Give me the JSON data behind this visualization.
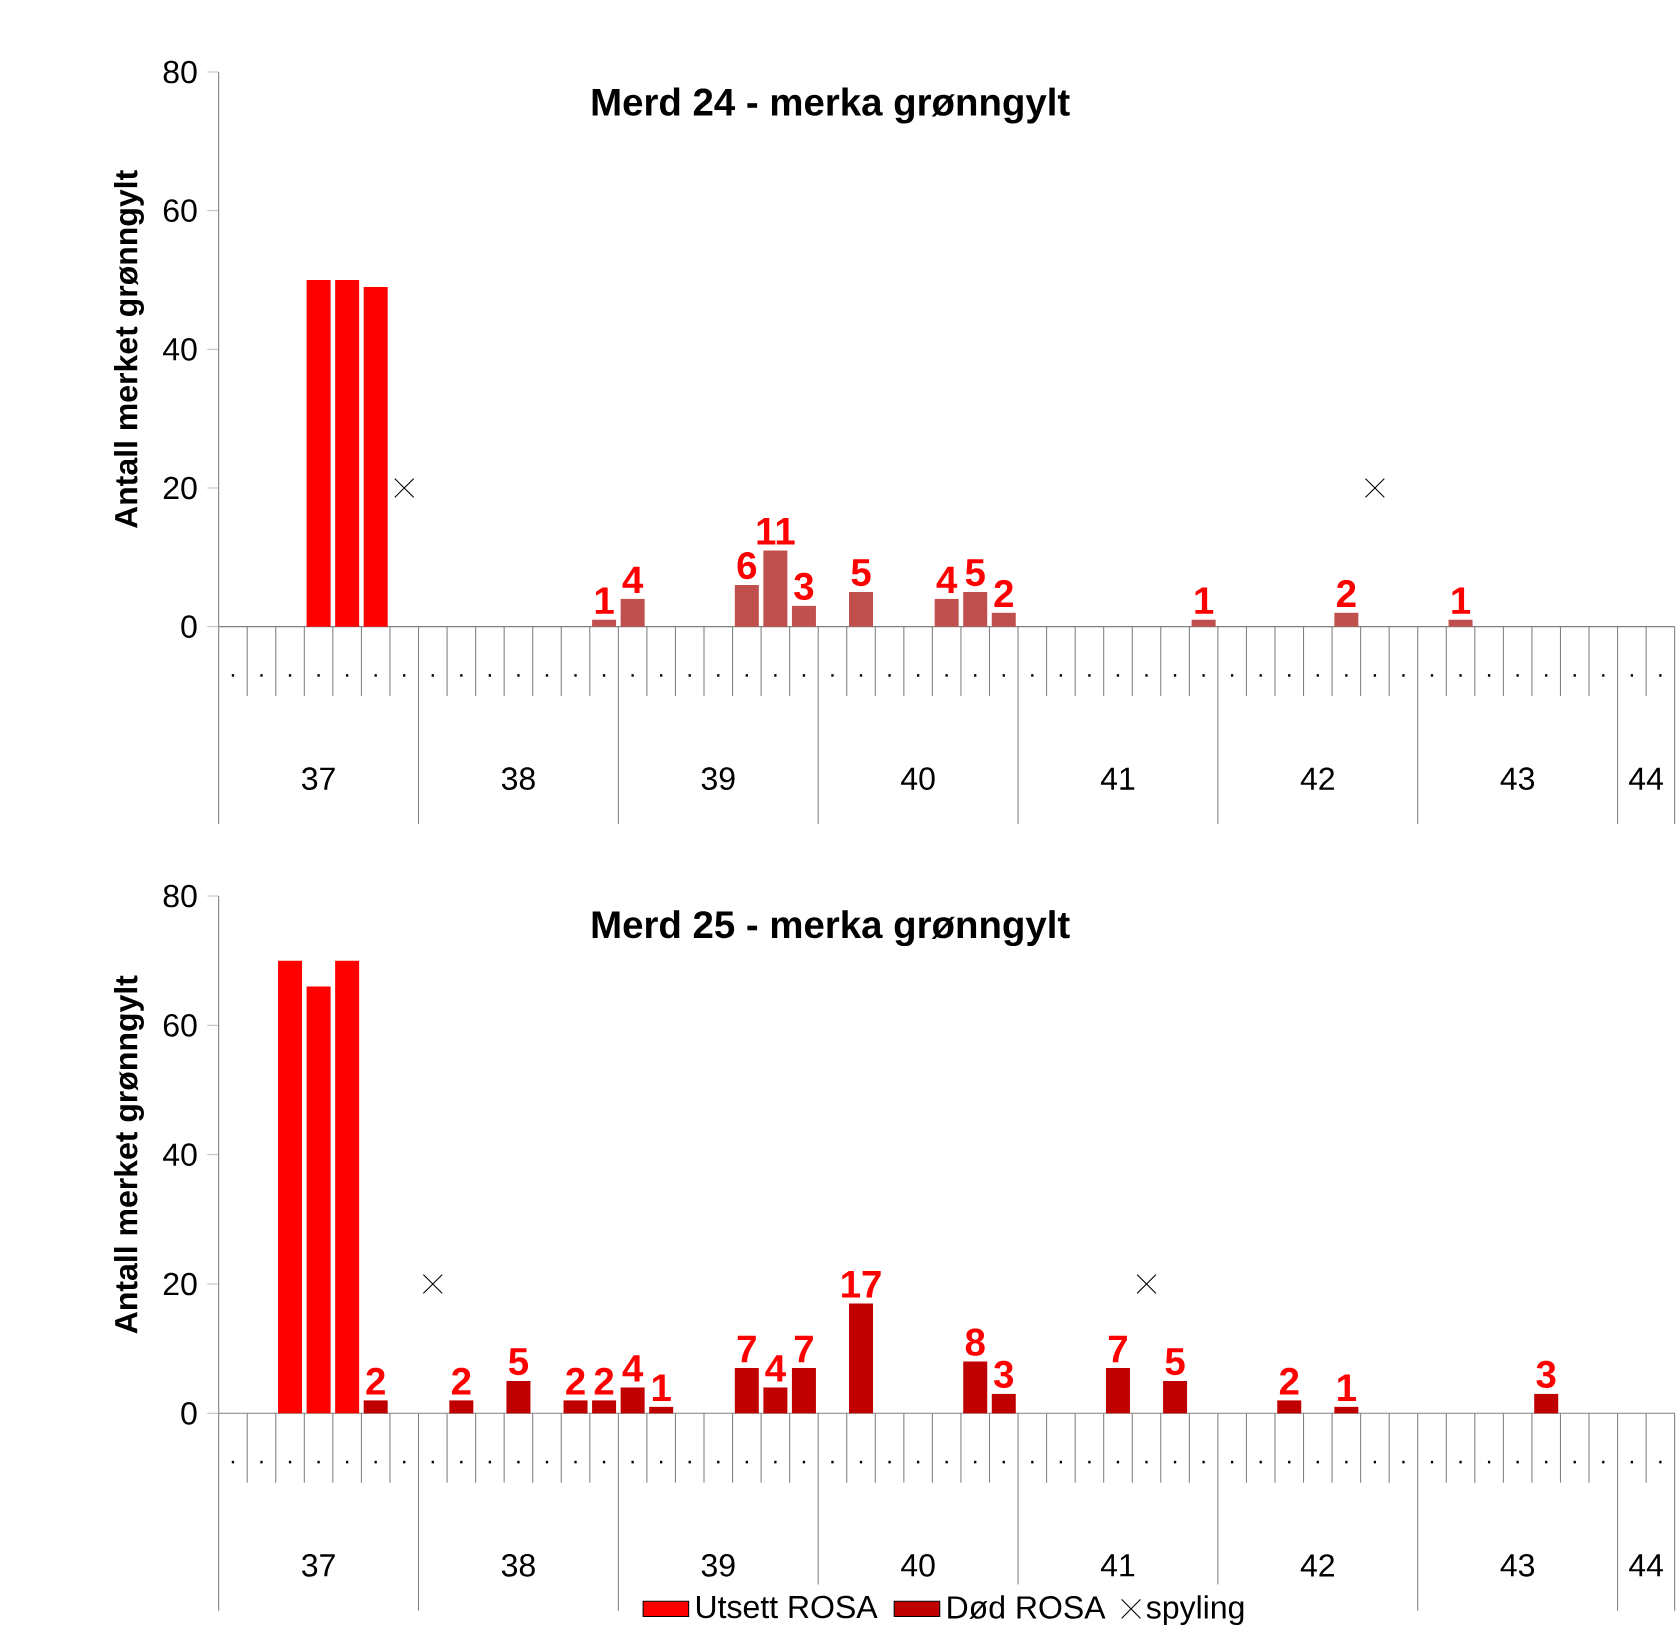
{
  "chart_data": [
    {
      "type": "bar",
      "title": "Merd 24 - merka grønngylt",
      "ylabel": "Antall merket grønngylt",
      "categories": [
        ".",
        ".",
        ".",
        ".",
        ".",
        ".",
        ".",
        ".",
        ".",
        ".",
        ".",
        ".",
        ".",
        ".",
        ".",
        ".",
        ".",
        ".",
        ".",
        ".",
        ".",
        ".",
        ".",
        ".",
        ".",
        ".",
        ".",
        ".",
        ".",
        ".",
        ".",
        ".",
        ".",
        ".",
        ".",
        ".",
        ".",
        ".",
        ".",
        ".",
        ".",
        ".",
        ".",
        ".",
        ".",
        ".",
        ".",
        ".",
        ".",
        ".",
        "."
      ],
      "annotations": [
        "37",
        "38",
        "39",
        "40",
        "41",
        "42",
        "43",
        "44"
      ],
      "ylim": [
        0,
        80
      ],
      "yticks": [
        0,
        20,
        40,
        60,
        80
      ],
      "grid": false,
      "series": [
        {
          "color": "#ff0000",
          "values": [
            null,
            null,
            null,
            50,
            50,
            49,
            null,
            null,
            null,
            null,
            null,
            null,
            null,
            null,
            null,
            null,
            null,
            null,
            null,
            null,
            null,
            null,
            null,
            null,
            null,
            null,
            null,
            null,
            null,
            null,
            null,
            null,
            null,
            null,
            null,
            null,
            null,
            null,
            null,
            null,
            null,
            null,
            null,
            null,
            null,
            null,
            null,
            null,
            null,
            null,
            null
          ]
        },
        {
          "color": "#c0504d",
          "values": [
            null,
            null,
            null,
            null,
            null,
            null,
            null,
            null,
            null,
            null,
            null,
            null,
            null,
            1,
            4,
            null,
            null,
            null,
            6,
            11,
            3,
            null,
            5,
            null,
            null,
            4,
            5,
            2,
            null,
            null,
            null,
            null,
            null,
            null,
            1,
            null,
            null,
            null,
            null,
            2,
            null,
            null,
            null,
            1,
            null,
            null,
            null,
            null,
            null,
            null,
            null
          ],
          "value_labels": [
            null,
            null,
            null,
            null,
            null,
            null,
            null,
            null,
            null,
            null,
            null,
            null,
            null,
            "1",
            "4",
            null,
            null,
            null,
            "6",
            "11",
            "3",
            null,
            "5",
            null,
            null,
            "4",
            "5",
            "2",
            null,
            null,
            null,
            null,
            null,
            null,
            "1",
            null,
            null,
            null,
            null,
            "2",
            null,
            null,
            null,
            "1",
            null,
            null,
            null,
            null,
            null,
            null,
            null
          ]
        },
        {
          "type": "scatter",
          "marker": "cross",
          "color": "#000000",
          "values": [
            null,
            null,
            null,
            null,
            null,
            null,
            20,
            null,
            null,
            null,
            null,
            null,
            null,
            null,
            null,
            null,
            null,
            null,
            null,
            null,
            null,
            null,
            null,
            null,
            null,
            null,
            null,
            null,
            null,
            null,
            null,
            null,
            null,
            null,
            null,
            null,
            null,
            null,
            null,
            null,
            20,
            null,
            null,
            null,
            null,
            null,
            null,
            null,
            null,
            null,
            null
          ]
        }
      ]
    },
    {
      "type": "bar",
      "title": "Merd 25 - merka grønngylt",
      "ylabel": "Antall merket grønngylt",
      "categories": [
        ".",
        ".",
        ".",
        ".",
        ".",
        ".",
        ".",
        ".",
        ".",
        ".",
        ".",
        ".",
        ".",
        ".",
        ".",
        ".",
        ".",
        ".",
        ".",
        ".",
        ".",
        ".",
        ".",
        ".",
        ".",
        ".",
        ".",
        ".",
        ".",
        ".",
        ".",
        ".",
        ".",
        ".",
        ".",
        ".",
        ".",
        ".",
        ".",
        ".",
        ".",
        ".",
        ".",
        ".",
        ".",
        ".",
        ".",
        ".",
        ".",
        ".",
        "."
      ],
      "annotations": [
        "37",
        "38",
        "39",
        "40",
        "41",
        "42",
        "43",
        "44"
      ],
      "ylim": [
        0,
        80
      ],
      "yticks": [
        0,
        20,
        40,
        60,
        80
      ],
      "grid": false,
      "legend": "bottom",
      "series": [
        {
          "name": "Utsett ROSA",
          "color": "#ff0000",
          "values": [
            null,
            null,
            70,
            66,
            70,
            null,
            null,
            null,
            null,
            null,
            null,
            null,
            null,
            null,
            null,
            null,
            null,
            null,
            null,
            null,
            null,
            null,
            null,
            null,
            null,
            null,
            null,
            null,
            null,
            null,
            null,
            null,
            null,
            null,
            null,
            null,
            null,
            null,
            null,
            null,
            null,
            null,
            null,
            null,
            null,
            null,
            null,
            null,
            null,
            null,
            null
          ]
        },
        {
          "name": "Død ROSA",
          "color": "#c00000",
          "values": [
            null,
            null,
            null,
            null,
            null,
            2,
            null,
            null,
            2,
            null,
            5,
            null,
            2,
            2,
            4,
            1,
            null,
            null,
            7,
            4,
            7,
            null,
            17,
            null,
            null,
            null,
            8,
            3,
            null,
            null,
            null,
            7,
            null,
            5,
            null,
            null,
            null,
            2,
            null,
            1,
            null,
            null,
            null,
            null,
            null,
            null,
            3,
            null,
            null,
            null,
            null
          ],
          "value_labels": [
            null,
            null,
            null,
            null,
            null,
            "2",
            null,
            null,
            "2",
            null,
            "5",
            null,
            "2",
            "2",
            "4",
            "1",
            null,
            null,
            "7",
            "4",
            "7",
            null,
            "17",
            null,
            null,
            null,
            "8",
            "3",
            null,
            null,
            null,
            "7",
            null,
            "5",
            null,
            null,
            null,
            "2",
            null,
            "1",
            null,
            null,
            null,
            null,
            null,
            null,
            "3",
            null,
            null,
            null,
            null
          ]
        },
        {
          "name": "spyling",
          "type": "scatter",
          "marker": "cross",
          "color": "#000000",
          "values": [
            null,
            null,
            null,
            null,
            null,
            null,
            null,
            20,
            null,
            null,
            null,
            null,
            null,
            null,
            null,
            null,
            null,
            null,
            null,
            null,
            null,
            null,
            null,
            null,
            null,
            null,
            null,
            null,
            null,
            null,
            null,
            null,
            20,
            null,
            null,
            null,
            null,
            null,
            null,
            null,
            null,
            null,
            null,
            null,
            null,
            null,
            null,
            null,
            null,
            null,
            null
          ]
        }
      ]
    }
  ]
}
